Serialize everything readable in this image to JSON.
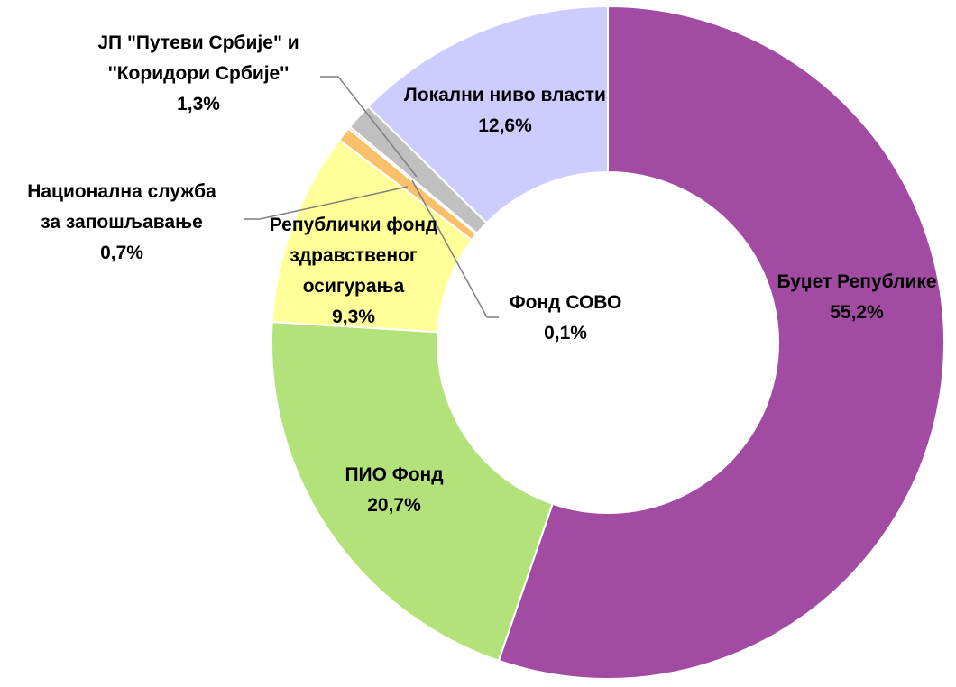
{
  "chart_data": {
    "type": "donut",
    "categories": [
      "Буџет Републике",
      "ПИО Фонд",
      "Републички фонд\nздравственог\nосигурања",
      "Национална служба\nза запошљавање",
      "Фонд СОВО",
      "ЈП \"Путеви Србије\" и\n''Коридори Србије''",
      "Локални ниво власти"
    ],
    "values": [
      55.2,
      20.7,
      9.3,
      0.7,
      0.1,
      1.3,
      12.6
    ],
    "value_labels": [
      "55,2%",
      "20,7%",
      "9,3%",
      "0,7%",
      "0,1%",
      "1,3%",
      "12,6%"
    ],
    "colors": [
      "#a14ba3",
      "#b3e27a",
      "#ffff99",
      "#fac06a",
      "#7f7f7f",
      "#c0c0c0",
      "#ccccff"
    ]
  }
}
